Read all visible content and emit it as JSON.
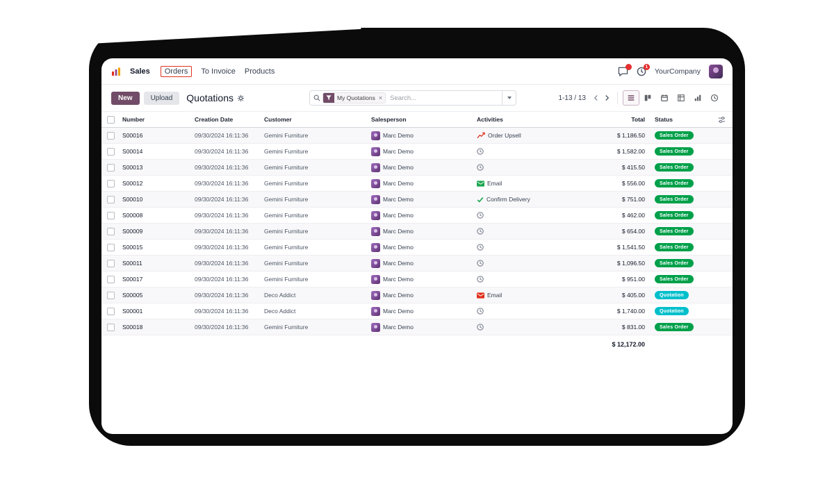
{
  "nav": {
    "menus": [
      {
        "label": "Sales"
      },
      {
        "label": "Orders"
      },
      {
        "label": "To Invoice"
      },
      {
        "label": "Products"
      }
    ],
    "highlighted_menu": "Orders",
    "company": "YourCompany",
    "chat_badge": "",
    "activity_badge": "1"
  },
  "control": {
    "new_label": "New",
    "upload_label": "Upload",
    "breadcrumb": "Quotations",
    "search_facet": "My Quotations",
    "search_placeholder": "Search...",
    "pager": "1-13 / 13"
  },
  "icons": {
    "nav": [
      "messages-icon",
      "activities-icon"
    ],
    "view_switcher": [
      "list-view-icon",
      "kanban-view-icon",
      "calendar-view-icon",
      "pivot-view-icon",
      "graph-view-icon",
      "activity-view-icon"
    ],
    "activities": {
      "clock": "clock-icon",
      "upsell": "line-chart-icon",
      "email_green": "green-envelope-icon",
      "email_red": "red-envelope-icon",
      "check": "green-check-icon"
    }
  },
  "table": {
    "headers": {
      "number": "Number",
      "date": "Creation Date",
      "customer": "Customer",
      "salesperson": "Salesperson",
      "activities": "Activities",
      "total": "Total",
      "status": "Status"
    },
    "rows": [
      {
        "number": "S00016",
        "date": "09/30/2024 16:11:36",
        "customer": "Gemini Furniture",
        "salesperson": "Marc Demo",
        "activity": {
          "type": "upsell",
          "label": "Order Upsell"
        },
        "total": "$ 1,186.50",
        "status": "Sales Order"
      },
      {
        "number": "S00014",
        "date": "09/30/2024 16:11:36",
        "customer": "Gemini Furniture",
        "salesperson": "Marc Demo",
        "activity": {
          "type": "clock",
          "label": ""
        },
        "total": "$ 1,582.00",
        "status": "Sales Order"
      },
      {
        "number": "S00013",
        "date": "09/30/2024 16:11:36",
        "customer": "Gemini Furniture",
        "salesperson": "Marc Demo",
        "activity": {
          "type": "clock",
          "label": ""
        },
        "total": "$ 415.50",
        "status": "Sales Order"
      },
      {
        "number": "S00012",
        "date": "09/30/2024 16:11:36",
        "customer": "Gemini Furniture",
        "salesperson": "Marc Demo",
        "activity": {
          "type": "email_green",
          "label": "Email"
        },
        "total": "$ 556.00",
        "status": "Sales Order"
      },
      {
        "number": "S00010",
        "date": "09/30/2024 16:11:36",
        "customer": "Gemini Furniture",
        "salesperson": "Marc Demo",
        "activity": {
          "type": "check",
          "label": "Confirm Delivery"
        },
        "total": "$ 751.00",
        "status": "Sales Order"
      },
      {
        "number": "S00008",
        "date": "09/30/2024 16:11:36",
        "customer": "Gemini Furniture",
        "salesperson": "Marc Demo",
        "activity": {
          "type": "clock",
          "label": ""
        },
        "total": "$ 462.00",
        "status": "Sales Order"
      },
      {
        "number": "S00009",
        "date": "09/30/2024 16:11:36",
        "customer": "Gemini Furniture",
        "salesperson": "Marc Demo",
        "activity": {
          "type": "clock",
          "label": ""
        },
        "total": "$ 654.00",
        "status": "Sales Order"
      },
      {
        "number": "S00015",
        "date": "09/30/2024 16:11:36",
        "customer": "Gemini Furniture",
        "salesperson": "Marc Demo",
        "activity": {
          "type": "clock",
          "label": ""
        },
        "total": "$ 1,541.50",
        "status": "Sales Order"
      },
      {
        "number": "S00011",
        "date": "09/30/2024 16:11:36",
        "customer": "Gemini Furniture",
        "salesperson": "Marc Demo",
        "activity": {
          "type": "clock",
          "label": ""
        },
        "total": "$ 1,096.50",
        "status": "Sales Order"
      },
      {
        "number": "S00017",
        "date": "09/30/2024 16:11:36",
        "customer": "Gemini Furniture",
        "salesperson": "Marc Demo",
        "activity": {
          "type": "clock",
          "label": ""
        },
        "total": "$ 951.00",
        "status": "Sales Order"
      },
      {
        "number": "S00005",
        "date": "09/30/2024 16:11:36",
        "customer": "Deco Addict",
        "salesperson": "Marc Demo",
        "activity": {
          "type": "email_red",
          "label": "Email"
        },
        "total": "$ 405.00",
        "status": "Quotation"
      },
      {
        "number": "S00001",
        "date": "09/30/2024 16:11:36",
        "customer": "Deco Addict",
        "salesperson": "Marc Demo",
        "activity": {
          "type": "clock",
          "label": ""
        },
        "total": "$ 1,740.00",
        "status": "Quotation"
      },
      {
        "number": "S00018",
        "date": "09/30/2024 16:11:36",
        "customer": "Gemini Furniture",
        "salesperson": "Marc Demo",
        "activity": {
          "type": "clock",
          "label": ""
        },
        "total": "$ 831.00",
        "status": "Sales Order"
      }
    ],
    "footer_total": "$ 12,172.00"
  },
  "colors": {
    "primary": "#714B67",
    "sales_order_badge": "#00A04A",
    "quotation_badge": "#00BFCB",
    "highlight_box": "#E0311E",
    "notification_badge": "#E52F2F"
  }
}
